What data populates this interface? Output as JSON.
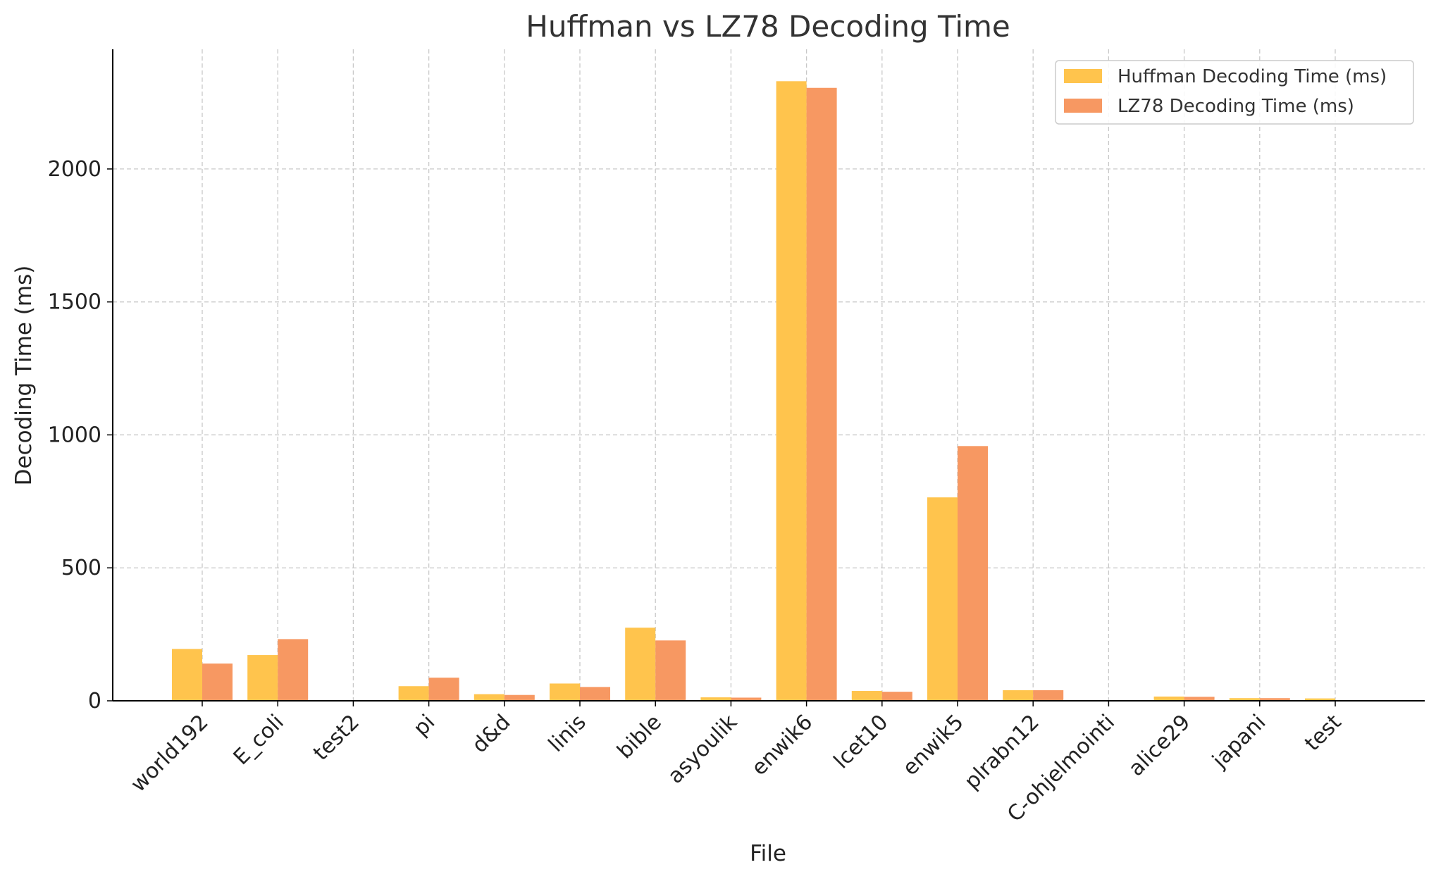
{
  "chart_data": {
    "type": "bar",
    "title": "Huffman vs LZ78 Decoding Time",
    "xlabel": "File",
    "ylabel": "Decoding Time (ms)",
    "categories": [
      "world192",
      "E_coli",
      "test2",
      "pi",
      "d&d",
      "linis",
      "bible",
      "asyoulik",
      "enwik6",
      "lcet10",
      "enwik5",
      "plrabn12",
      "C-ohjelmointi",
      "alice29",
      "japani",
      "test"
    ],
    "series": [
      {
        "name": "Huffman Decoding Time (ms)",
        "color": "#FFC44D",
        "values": [
          195,
          172,
          0,
          55,
          25,
          65,
          275,
          13,
          2330,
          37,
          765,
          40,
          1,
          16,
          10,
          9
        ]
      },
      {
        "name": "LZ78 Decoding Time (ms)",
        "color": "#F79862",
        "values": [
          140,
          232,
          0,
          87,
          22,
          52,
          227,
          12,
          2305,
          34,
          958,
          40,
          1,
          15,
          10,
          1
        ]
      }
    ],
    "ylim": [
      0,
      2450
    ],
    "yticks": [
      0,
      500,
      1000,
      1500,
      2000
    ],
    "grid": true,
    "legend_position": "top-right"
  }
}
